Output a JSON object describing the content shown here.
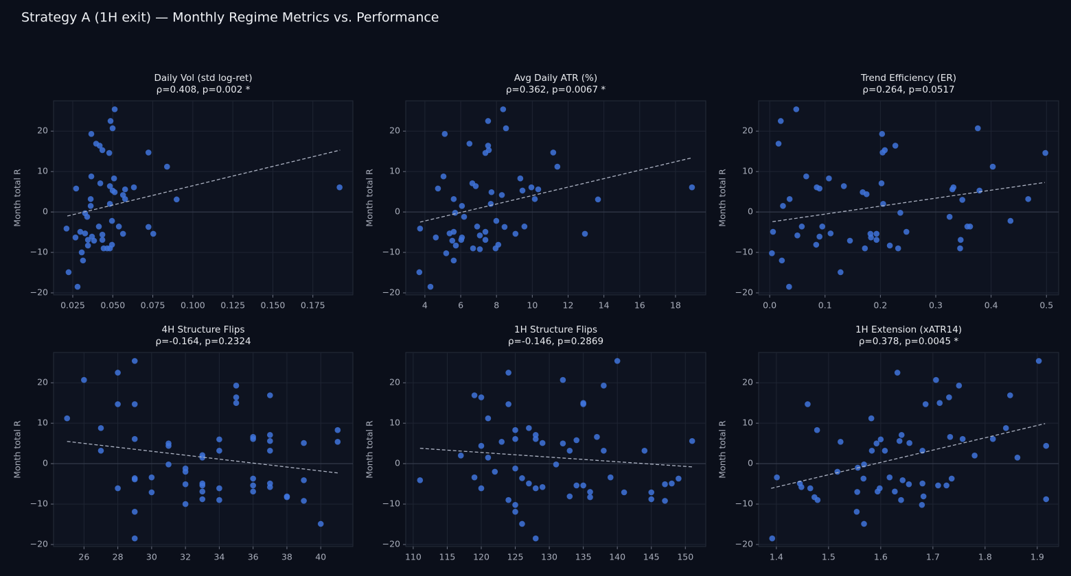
{
  "title": "Strategy A (1H exit) — Monthly Regime Metrics vs. Performance",
  "chart_data": [
    {
      "type": "scatter",
      "title": "Daily Vol (std log-ret)",
      "subtitle": "ρ=0.408, p=0.002 *",
      "ylabel": "Month total R",
      "color": "#3f74dc",
      "grid": true,
      "hline": 0,
      "xlim": [
        0.013,
        0.2
      ],
      "ylim": [
        -20.5,
        27.5
      ],
      "xticks": [
        0.025,
        {
          "value": 0.05,
          "label": "0.050"
        },
        0.075,
        {
          "value": 0.1,
          "label": "0.100"
        },
        0.125,
        {
          "value": 0.15,
          "label": "0.150"
        },
        0.175
      ],
      "yticks": [
        {
          "value": -20,
          "label": "−20"
        },
        {
          "value": -10,
          "label": "−10"
        },
        0,
        10,
        20
      ],
      "x": [
        0.0512,
        0.0486,
        0.0499,
        0.0366,
        0.0396,
        0.0418,
        0.0435,
        0.0478,
        0.0723,
        0.0839,
        0.0366,
        0.0508,
        0.0422,
        0.0482,
        0.0632,
        0.1917,
        0.0271,
        0.0577,
        0.0499,
        0.0512,
        0.0564,
        0.0577,
        0.0362,
        0.0899,
        0.0362,
        0.0482,
        0.0327,
        0.034,
        0.0495,
        0.0413,
        0.0538,
        0.0723,
        0.0211,
        0.0297,
        0.0327,
        0.037,
        0.0267,
        0.0435,
        0.0564,
        0.0753,
        0.0345,
        0.0383,
        0.0435,
        0.0495,
        0.0345,
        0.0443,
        0.0465,
        0.0482,
        0.0306,
        0.0314,
        0.0224,
        0.028
      ],
      "y": [
        25.4,
        22.5,
        20.7,
        19.3,
        16.9,
        16.4,
        15.3,
        14.6,
        14.7,
        11.2,
        8.8,
        8.3,
        7.1,
        6.4,
        6.1,
        6.1,
        5.8,
        5.6,
        5.3,
        4.9,
        4.2,
        3.2,
        3.2,
        3.1,
        1.5,
        2.0,
        -0.3,
        -1.2,
        -2.2,
        -3.6,
        -3.6,
        -3.7,
        -4.1,
        -4.9,
        -5.3,
        -6.1,
        -6.3,
        -5.6,
        -5.4,
        -5.4,
        -6.9,
        -7.1,
        -6.9,
        -8.1,
        -8.3,
        -9.0,
        -9.0,
        -9.0,
        -10.0,
        -12.0,
        -14.9,
        -18.5
      ],
      "trend": {
        "x": [
          0.0216,
          0.192
        ],
        "y": [
          -1.0,
          15.3
        ]
      }
    },
    {
      "type": "scatter",
      "title": "Avg Daily ATR (%)",
      "subtitle": "ρ=0.362, p=0.0067 *",
      "ylabel": "Month total R",
      "color": "#3f74dc",
      "grid": true,
      "hline": 0,
      "xlim": [
        2.93,
        19.69
      ],
      "ylim": [
        -20.5,
        27.5
      ],
      "xticks": [
        4,
        6,
        8,
        10,
        12,
        14,
        16,
        18
      ],
      "yticks": [
        {
          "value": -20,
          "label": "−20"
        },
        {
          "value": -10,
          "label": "−10"
        },
        0,
        10,
        20
      ],
      "x": [
        8.37,
        7.53,
        8.53,
        5.11,
        6.49,
        7.53,
        7.57,
        7.38,
        11.17,
        11.4,
        5.04,
        9.33,
        6.65,
        6.84,
        9.95,
        18.92,
        4.73,
        10.33,
        9.45,
        7.72,
        8.3,
        5.61,
        10.14,
        13.67,
        6.07,
        7.68,
        5.69,
        6.19,
        7.99,
        6.92,
        8.45,
        9.56,
        3.73,
        7.38,
        5.38,
        5.61,
        4.61,
        7.07,
        6.07,
        9.06,
        12.94,
        7.38,
        5.53,
        6.03,
        5.73,
        8.1,
        6.69,
        7.07,
        7.95,
        5.19,
        5.61,
        3.69,
        4.31
      ],
      "y": [
        25.4,
        22.5,
        20.7,
        19.3,
        16.9,
        16.4,
        15.3,
        14.6,
        14.7,
        11.2,
        8.8,
        8.3,
        7.1,
        6.4,
        6.1,
        6.1,
        5.8,
        5.6,
        5.3,
        4.9,
        4.2,
        3.2,
        3.2,
        3.1,
        1.5,
        2.0,
        -0.2,
        -1.2,
        -2.2,
        -3.6,
        -3.7,
        -3.6,
        -4.1,
        -4.9,
        -5.3,
        -4.9,
        -6.3,
        -5.8,
        -6.3,
        -5.4,
        -5.4,
        -6.9,
        -7.1,
        -6.9,
        -8.3,
        -8.1,
        -9.0,
        -9.2,
        -9.0,
        -10.2,
        -12.0,
        -14.9,
        -18.5
      ],
      "trend": {
        "x": [
          3.73,
          18.92
        ],
        "y": [
          -2.5,
          13.4
        ]
      }
    },
    {
      "type": "scatter",
      "title": "Trend Efficiency (ER)",
      "subtitle": "ρ=0.264, p=0.0517",
      "ylabel": "Month total R",
      "color": "#3f74dc",
      "grid": true,
      "hline": 0,
      "xlim": [
        -0.02,
        0.522
      ],
      "ylim": [
        -20.5,
        27.5
      ],
      "xticks": [
        {
          "value": 0,
          "label": "0.0"
        },
        0.1,
        0.2,
        0.3,
        0.4,
        0.5
      ],
      "yticks": [
        {
          "value": -20,
          "label": "−20"
        },
        {
          "value": -10,
          "label": "−10"
        },
        0,
        10,
        20
      ],
      "x": [
        0.048,
        0.02,
        0.376,
        0.203,
        0.016,
        0.227,
        0.208,
        0.204,
        0.498,
        0.403,
        0.066,
        0.107,
        0.202,
        0.134,
        0.332,
        0.085,
        0.09,
        0.33,
        0.379,
        0.168,
        0.175,
        0.036,
        0.467,
        0.348,
        0.024,
        0.205,
        0.236,
        0.325,
        0.435,
        0.058,
        0.095,
        0.357,
        0.362,
        0.006,
        0.11,
        0.247,
        0.05,
        0.193,
        0.182,
        0.09,
        0.183,
        0.193,
        0.145,
        0.345,
        0.084,
        0.217,
        0.172,
        0.232,
        0.344,
        0.004,
        0.022,
        0.128,
        0.035
      ],
      "y": [
        25.4,
        22.5,
        20.7,
        19.3,
        16.9,
        16.4,
        15.3,
        14.7,
        14.6,
        11.2,
        8.8,
        8.3,
        7.1,
        6.4,
        6.1,
        6.1,
        5.8,
        5.6,
        5.3,
        4.9,
        4.4,
        3.2,
        3.2,
        3.0,
        1.5,
        2.0,
        -0.2,
        -1.2,
        -2.2,
        -3.6,
        -3.6,
        -3.6,
        -3.6,
        -4.9,
        -5.3,
        -4.9,
        -5.8,
        -5.4,
        -5.4,
        -6.1,
        -6.3,
        -6.9,
        -7.1,
        -6.9,
        -8.1,
        -8.3,
        -9.0,
        -9.0,
        -9.0,
        -10.2,
        -12.0,
        -14.9,
        -18.5
      ],
      "trend": {
        "x": [
          0.005,
          0.497
        ],
        "y": [
          -2.4,
          7.3
        ]
      }
    },
    {
      "type": "scatter",
      "title": "4H Structure Flips",
      "subtitle": "ρ=-0.164, p=0.2324",
      "ylabel": "Month total R",
      "color": "#3f74dc",
      "grid": true,
      "hline": 0,
      "xlim": [
        24.2,
        41.9
      ],
      "ylim": [
        -20.5,
        27.5
      ],
      "xticks": [
        26,
        28,
        30,
        32,
        34,
        36,
        38,
        40
      ],
      "yticks": [
        {
          "value": -20,
          "label": "−20"
        },
        {
          "value": -10,
          "label": "−10"
        },
        0,
        10,
        20
      ],
      "x": [
        29,
        26,
        28,
        35,
        28,
        29,
        37,
        35,
        35,
        25,
        27,
        41,
        37,
        36,
        36,
        29,
        34,
        37,
        41,
        39,
        31,
        31,
        27,
        34,
        37,
        33,
        33,
        31,
        32,
        32,
        30,
        29,
        29,
        36,
        39,
        33,
        37,
        32,
        33,
        36,
        37,
        28,
        34,
        36,
        33,
        30,
        38,
        38,
        33,
        34,
        39,
        32,
        29,
        40,
        29
      ],
      "y": [
        25.4,
        20.7,
        22.5,
        19.3,
        14.7,
        14.7,
        16.9,
        16.4,
        15.0,
        11.2,
        8.8,
        8.3,
        7.1,
        6.6,
        6.1,
        6.1,
        6.0,
        5.6,
        5.4,
        5.1,
        5.0,
        4.4,
        3.2,
        3.2,
        3.2,
        2.1,
        1.5,
        -0.2,
        -1.2,
        -2.0,
        -3.4,
        -3.6,
        -3.9,
        -3.7,
        -4.1,
        -4.9,
        -4.9,
        -5.1,
        -5.4,
        -5.4,
        -5.8,
        -6.1,
        -6.1,
        -6.9,
        -6.9,
        -7.1,
        -8.1,
        -8.3,
        -8.8,
        -9.0,
        -9.2,
        -10.0,
        -11.9,
        -14.9,
        -18.5
      ],
      "trend": {
        "x": [
          25,
          41
        ],
        "y": [
          5.5,
          -2.3
        ]
      }
    },
    {
      "type": "scatter",
      "title": "1H Structure Flips",
      "subtitle": "ρ=-0.146, p=0.2869",
      "ylabel": "Month total R",
      "color": "#3f74dc",
      "grid": true,
      "hline": 0,
      "xlim": [
        108.9,
        153.0
      ],
      "ylim": [
        -20.5,
        27.5
      ],
      "xticks": [
        110,
        115,
        120,
        125,
        130,
        135,
        140,
        145,
        150
      ],
      "yticks": [
        {
          "value": -20,
          "label": "−20"
        },
        {
          "value": -10,
          "label": "−10"
        },
        0,
        10,
        20
      ],
      "x": [
        140,
        132,
        124,
        138,
        119,
        120,
        124,
        135,
        135,
        121,
        127,
        125,
        128,
        137,
        128,
        125,
        134,
        151,
        123,
        129,
        132,
        120,
        133,
        138,
        144,
        117,
        121,
        131,
        125,
        122,
        119,
        126,
        139,
        149,
        111,
        127,
        147,
        148,
        134,
        135,
        128,
        129,
        120,
        136,
        141,
        145,
        133,
        136,
        145,
        124,
        147,
        125,
        125,
        126,
        128
      ],
      "y": [
        25.4,
        20.7,
        22.5,
        19.3,
        16.9,
        16.4,
        14.7,
        15.0,
        14.7,
        11.2,
        8.8,
        8.3,
        7.1,
        6.6,
        6.1,
        6.1,
        5.8,
        5.6,
        5.4,
        5.1,
        5.0,
        4.4,
        3.2,
        3.2,
        3.2,
        2.0,
        1.5,
        -0.2,
        -1.2,
        -2.0,
        -3.4,
        -3.6,
        -3.4,
        -3.7,
        -4.1,
        -4.9,
        -5.1,
        -4.9,
        -5.4,
        -5.4,
        -6.1,
        -5.8,
        -6.1,
        -7.0,
        -7.1,
        -7.1,
        -8.1,
        -8.3,
        -8.8,
        -9.0,
        -9.2,
        -10.2,
        -11.9,
        -14.9,
        -18.5
      ],
      "trend": {
        "x": [
          111,
          151
        ],
        "y": [
          3.8,
          -0.8
        ]
      }
    },
    {
      "type": "scatter",
      "title": "1H Extension (xATR14)",
      "subtitle": "ρ=0.378, p=0.0045 *",
      "ylabel": "Month total R",
      "color": "#3f74dc",
      "grid": true,
      "hline": 0,
      "xlim": [
        1.366,
        1.941
      ],
      "ylim": [
        -20.5,
        27.5
      ],
      "xticks": [
        1.4,
        1.5,
        1.6,
        1.7,
        1.8,
        1.9
      ],
      "yticks": [
        {
          "value": -20,
          "label": "−20"
        },
        {
          "value": -10,
          "label": "−10"
        },
        0,
        10,
        20
      ],
      "x": [
        1.903,
        1.706,
        1.632,
        1.75,
        1.46,
        1.713,
        1.848,
        1.731,
        1.686,
        1.582,
        1.84,
        1.478,
        1.64,
        1.733,
        1.815,
        1.757,
        1.6,
        1.636,
        1.523,
        1.655,
        1.592,
        1.917,
        1.583,
        1.608,
        1.68,
        1.78,
        1.862,
        1.568,
        1.556,
        1.517,
        1.401,
        1.617,
        1.567,
        1.736,
        1.642,
        1.445,
        1.68,
        1.448,
        1.654,
        1.726,
        1.71,
        1.465,
        1.598,
        1.594,
        1.555,
        1.627,
        1.473,
        1.682,
        1.479,
        1.639,
        1.917,
        1.679,
        1.554,
        1.568,
        1.392
      ],
      "y": [
        25.4,
        20.7,
        22.5,
        19.3,
        14.7,
        15.0,
        16.9,
        16.4,
        14.7,
        11.2,
        8.8,
        8.3,
        7.1,
        6.6,
        6.1,
        6.1,
        6.0,
        5.6,
        5.4,
        5.1,
        5.0,
        4.4,
        3.2,
        3.2,
        3.2,
        2.0,
        1.5,
        -0.2,
        -1.0,
        -2.0,
        -3.4,
        -3.4,
        -3.7,
        -3.7,
        -4.1,
        -4.9,
        -4.9,
        -5.8,
        -5.1,
        -5.4,
        -5.4,
        -6.1,
        -6.1,
        -6.9,
        -7.0,
        -6.9,
        -8.3,
        -8.1,
        -9.0,
        -9.0,
        -8.8,
        -10.2,
        -11.9,
        -14.9,
        -18.5
      ],
      "trend": {
        "x": [
          1.39,
          1.915
        ],
        "y": [
          -6.1,
          9.9
        ]
      }
    }
  ]
}
